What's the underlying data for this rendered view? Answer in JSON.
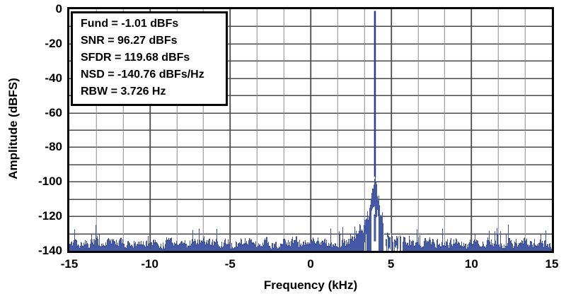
{
  "figure": {
    "background": "#ffffff"
  },
  "axes": {
    "x": {
      "label": "Frequency (kHz)",
      "min": -15,
      "max": 15,
      "major_tick_step": 5,
      "minor_divisions_per_major": 3,
      "ticks": [
        -15,
        -10,
        -5,
        0,
        5,
        10,
        15
      ]
    },
    "y": {
      "label": "Amplitude (dBFS)",
      "min": -140,
      "max": 0,
      "major_tick_step": 20,
      "minor_step_db": 10,
      "ticks": [
        0,
        -20,
        -40,
        -60,
        -80,
        -100,
        -120,
        -140
      ]
    }
  },
  "annotation_box": {
    "lines": [
      "Fund = -1.01 dBFs",
      "SNR = 96.27 dBFs",
      "SFDR = 119.68 dBFs",
      "NSD = -140.76 dBFs/Hz",
      "RBW = 3.726 Hz"
    ]
  },
  "chart_data": {
    "type": "area",
    "title": "",
    "xlabel": "Frequency (kHz)",
    "ylabel": "Amplitude (dBFS)",
    "xlim": [
      -15,
      15
    ],
    "ylim": [
      -140,
      0
    ],
    "grid": {
      "visible": true,
      "x_minor_step_khz": 1.6667,
      "y_minor_step_db": 10
    },
    "fundamental": {
      "frequency_khz": 4.0,
      "amplitude_dbfs": -1.01
    },
    "noise_floor": {
      "mean_dbfs": -134,
      "spread_db": 4,
      "spur_max_dbfs": -120
    },
    "skirt": {
      "base_dbfs": -96,
      "half_width_khz": 0.7,
      "shoulder_half_width_khz": 1.5
    },
    "metrics": {
      "fund_dbfs": -1.01,
      "snr_dbfs": 96.27,
      "sfdr_dbfs": 119.68,
      "nsd_dbfs_per_hz": -140.76,
      "rbw_hz": 3.726
    },
    "envelope_points": [
      [
        -15,
        -133
      ],
      [
        -13,
        -134
      ],
      [
        -11.5,
        -126
      ],
      [
        -10,
        -134
      ],
      [
        -8,
        -133
      ],
      [
        -6,
        -134
      ],
      [
        -4.2,
        -120
      ],
      [
        -3,
        -133
      ],
      [
        -1,
        -132
      ],
      [
        1,
        -130
      ],
      [
        2.5,
        -126
      ],
      [
        3.3,
        -121
      ],
      [
        3.7,
        -110
      ],
      [
        3.9,
        -100
      ],
      [
        4.0,
        -1.01
      ],
      [
        4.1,
        -101
      ],
      [
        4.3,
        -112
      ],
      [
        4.6,
        -122
      ],
      [
        5.2,
        -131
      ],
      [
        6,
        -132
      ],
      [
        8,
        -133
      ],
      [
        10,
        -134
      ],
      [
        12,
        -133
      ],
      [
        15,
        -132
      ]
    ]
  },
  "colors": {
    "fill": "#4458A6",
    "outline": "#2B3A8C",
    "spike": "#323D96",
    "grid_minor": "#8C8C8C",
    "grid_major": "#4A4A4A",
    "axis_border": "#000000",
    "text": "#000000",
    "annotation_bg": "#FFFFFF"
  }
}
